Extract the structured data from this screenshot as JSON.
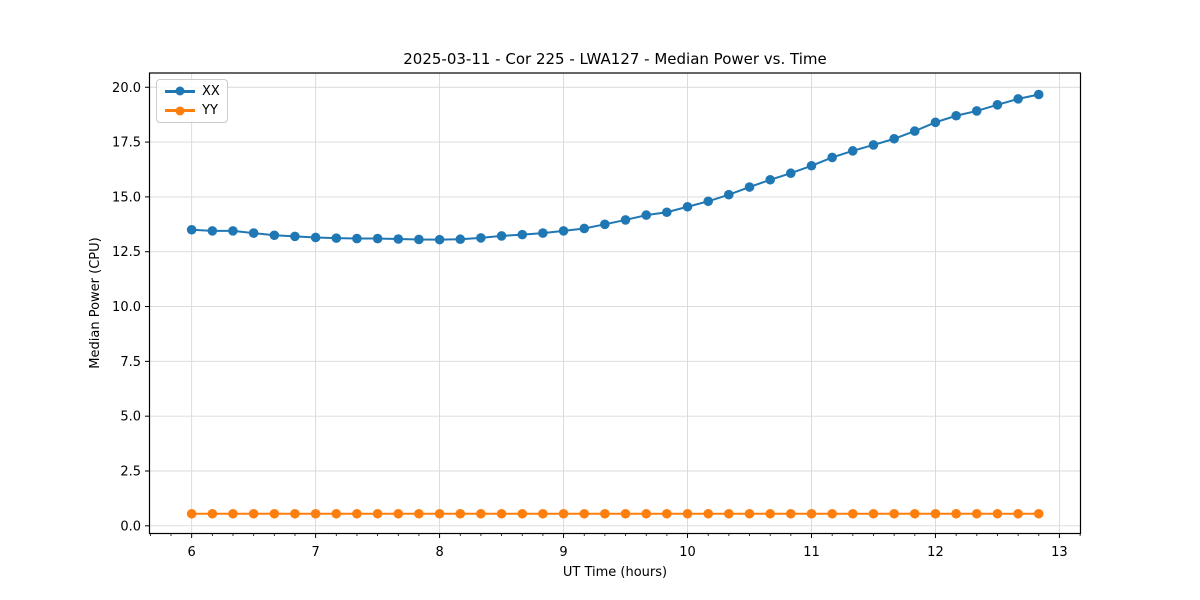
{
  "figure": {
    "background": "#ffffff",
    "grid_color": "#d9d9d9",
    "spine_color": "#000000"
  },
  "chart_data": {
    "type": "line",
    "title": "2025-03-11 - Cor 225 - LWA127 - Median Power vs. Time",
    "xlabel": "UT Time (hours)",
    "ylabel": "Median Power (CPU)",
    "xlim": [
      5.66,
      13.17
    ],
    "ylim": [
      -0.35,
      20.65
    ],
    "grid": "major",
    "legend_position": "upper left",
    "x_major_ticks": [
      6,
      7,
      8,
      9,
      10,
      11,
      12,
      13
    ],
    "x_major_tick_labels": [
      "6",
      "7",
      "8",
      "9",
      "10",
      "11",
      "12",
      "13"
    ],
    "x_minor_tick_step": 0.16667,
    "y_ticks": [
      0,
      2.5,
      5,
      7.5,
      10,
      12.5,
      15,
      17.5,
      20
    ],
    "y_tick_labels": [
      "0.0",
      "2.5",
      "5.0",
      "7.5",
      "10.0",
      "12.5",
      "15.0",
      "17.5",
      "20.0"
    ],
    "x": [
      6.0,
      6.167,
      6.333,
      6.5,
      6.667,
      6.833,
      7.0,
      7.167,
      7.333,
      7.5,
      7.667,
      7.833,
      8.0,
      8.167,
      8.333,
      8.5,
      8.667,
      8.833,
      9.0,
      9.167,
      9.333,
      9.5,
      9.667,
      9.833,
      10.0,
      10.167,
      10.333,
      10.5,
      10.667,
      10.833,
      11.0,
      11.167,
      11.333,
      11.5,
      11.667,
      11.833,
      12.0,
      12.167,
      12.333,
      12.5,
      12.667,
      12.833
    ],
    "series": [
      {
        "name": "XX",
        "color": "#1f77b4",
        "values": [
          13.5,
          13.45,
          13.45,
          13.35,
          13.25,
          13.2,
          13.15,
          13.12,
          13.1,
          13.1,
          13.08,
          13.06,
          13.05,
          13.07,
          13.13,
          13.22,
          13.28,
          13.35,
          13.45,
          13.56,
          13.75,
          13.95,
          14.17,
          14.3,
          14.55,
          14.8,
          15.1,
          15.45,
          15.78,
          16.08,
          16.42,
          16.8,
          17.1,
          17.37,
          17.65,
          18.0,
          18.4,
          18.7,
          18.92,
          19.2,
          19.47,
          19.67
        ]
      },
      {
        "name": "YY",
        "color": "#ff7f0e",
        "values": [
          0.55,
          0.55,
          0.55,
          0.55,
          0.55,
          0.55,
          0.55,
          0.55,
          0.55,
          0.55,
          0.55,
          0.55,
          0.55,
          0.55,
          0.55,
          0.55,
          0.55,
          0.55,
          0.55,
          0.55,
          0.55,
          0.55,
          0.55,
          0.55,
          0.55,
          0.55,
          0.55,
          0.55,
          0.55,
          0.55,
          0.55,
          0.55,
          0.55,
          0.55,
          0.55,
          0.55,
          0.55,
          0.55,
          0.55,
          0.55,
          0.55,
          0.55
        ]
      }
    ]
  }
}
